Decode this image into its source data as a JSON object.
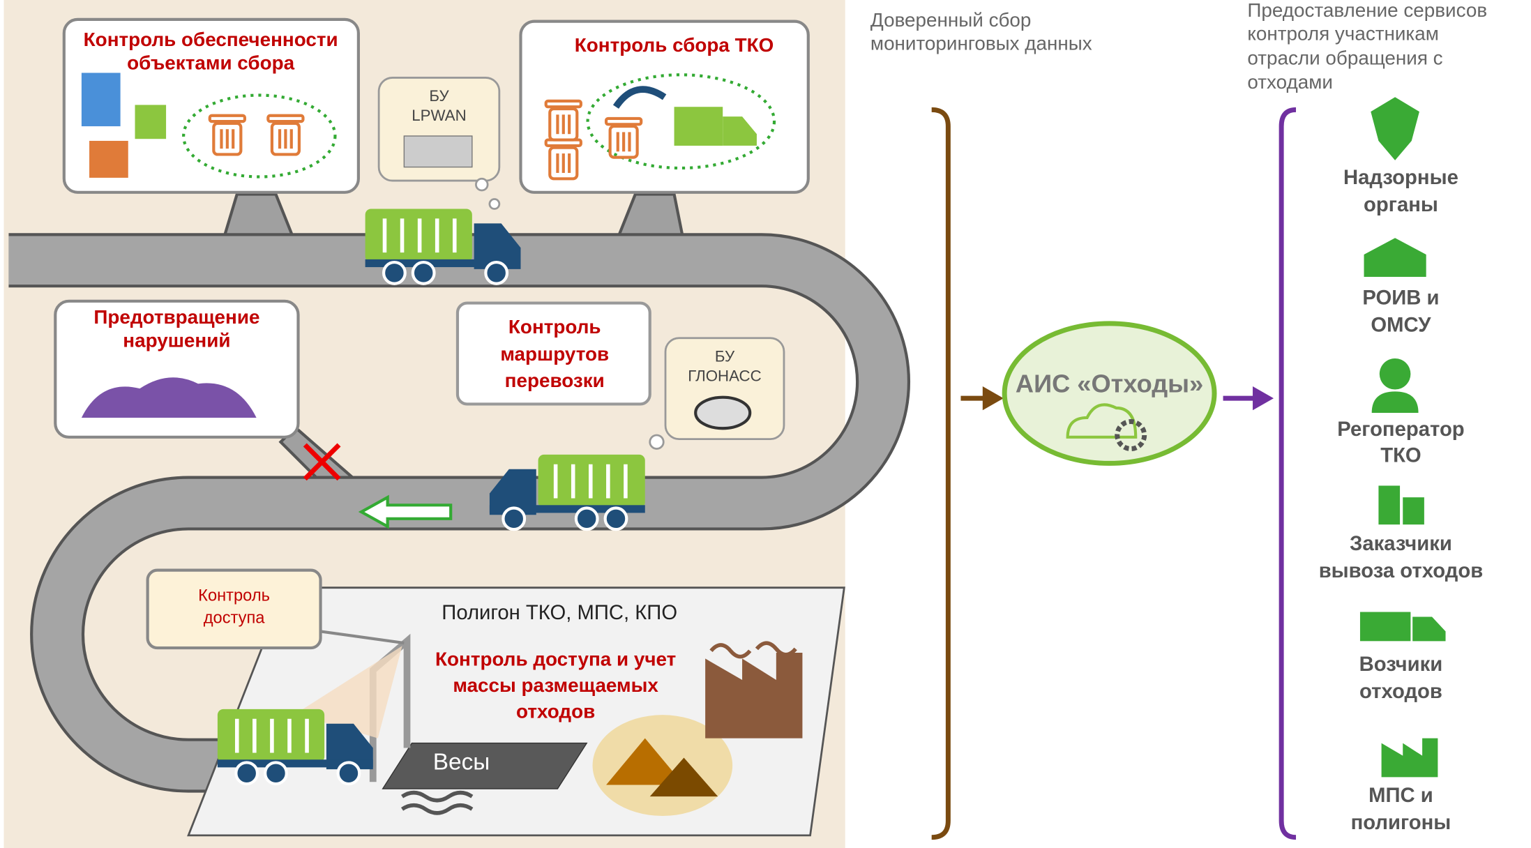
{
  "panels": [
    {
      "lines": [
        "Контроль обеспеченности",
        "объектами сбора"
      ]
    },
    {
      "lines": [
        "Контроль сбора ТКО"
      ]
    },
    {
      "lines": [
        "Предотвращение",
        "нарушений"
      ]
    },
    {
      "lines": [
        "Контроль",
        "маршрутов",
        "перевозки"
      ]
    },
    {
      "lines": [
        "Контроль",
        "доступа"
      ]
    }
  ],
  "devices": [
    {
      "lines": [
        "БУ",
        "LPWAN"
      ]
    },
    {
      "lines": [
        "БУ",
        "ГЛОНАСС"
      ]
    }
  ],
  "landfill": {
    "title": "Полигон ТКО, МПС, КПО",
    "lines": [
      "Контроль доступа и учет",
      "массы размещаемых",
      "отходов"
    ],
    "scales": "Весы"
  },
  "headings": [
    {
      "lines": [
        "Доверенный сбор",
        "мониторинговых данных"
      ]
    },
    {
      "lines": [
        "Предоставление сервисов",
        "контроля участникам",
        "отрасли обращения с",
        "отходами"
      ]
    }
  ],
  "system": "АИС «Отходы»",
  "participants": [
    {
      "lines": [
        "Надзорные",
        "органы"
      ]
    },
    {
      "lines": [
        "РОИВ и",
        "ОМСУ"
      ]
    },
    {
      "lines": [
        "Регоператор",
        "ТКО"
      ]
    },
    {
      "lines": [
        "Заказчики",
        "вывоза отходов"
      ]
    },
    {
      "lines": [
        "Возчики",
        "отходов"
      ]
    },
    {
      "lines": [
        "МПС и",
        "полигоны"
      ]
    }
  ]
}
